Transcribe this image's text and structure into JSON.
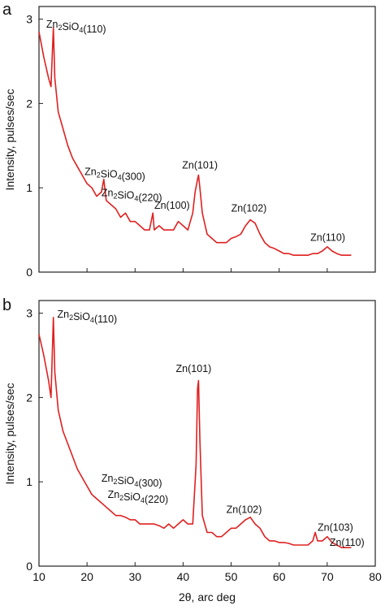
{
  "chart_data": [
    {
      "panel": "a",
      "type": "line",
      "ylabel": "Intensity, pulses/sec",
      "xlim": [
        10,
        80
      ],
      "ylim": [
        0,
        3.15
      ],
      "yticks": [
        0,
        1,
        2,
        3
      ],
      "xticks": [
        10,
        20,
        30,
        40,
        50,
        60,
        70,
        80
      ],
      "color": "#e02020",
      "series": [
        {
          "x": [
            10,
            11,
            12,
            12.5,
            13,
            13.3,
            14,
            15,
            16,
            17,
            18,
            19,
            20,
            21,
            22,
            23,
            23.5,
            24,
            25,
            26,
            27,
            28,
            29,
            30,
            31,
            32,
            33,
            33.7,
            34,
            35,
            36,
            37,
            38,
            39,
            40,
            41,
            42,
            42.5,
            43,
            43.2,
            43.5,
            44,
            45,
            46,
            47,
            48,
            49,
            50,
            51,
            52,
            53,
            54,
            55,
            56,
            57,
            58,
            59,
            60,
            61,
            62,
            63,
            64,
            65,
            66,
            67,
            68,
            69,
            70,
            71,
            72,
            73,
            74,
            75
          ],
          "y": [
            2.85,
            2.55,
            2.3,
            2.2,
            2.9,
            2.3,
            1.9,
            1.7,
            1.5,
            1.35,
            1.25,
            1.15,
            1.05,
            1.0,
            0.9,
            0.95,
            1.1,
            0.85,
            0.8,
            0.75,
            0.65,
            0.7,
            0.6,
            0.6,
            0.55,
            0.5,
            0.5,
            0.7,
            0.5,
            0.55,
            0.5,
            0.5,
            0.5,
            0.6,
            0.55,
            0.5,
            0.7,
            0.95,
            1.1,
            1.15,
            1.0,
            0.7,
            0.45,
            0.4,
            0.35,
            0.35,
            0.35,
            0.4,
            0.42,
            0.45,
            0.55,
            0.62,
            0.58,
            0.45,
            0.35,
            0.3,
            0.28,
            0.25,
            0.22,
            0.22,
            0.2,
            0.2,
            0.2,
            0.2,
            0.22,
            0.22,
            0.25,
            0.3,
            0.25,
            0.22,
            0.2,
            0.2,
            0.2
          ]
        }
      ],
      "annotations": [
        {
          "base": "Zn",
          "sub": "2",
          "mid": "SiO",
          "sub2": "4",
          "tail": "(110)",
          "x": 11.5,
          "y": 2.9
        },
        {
          "base": "Zn",
          "sub": "2",
          "mid": "SiO",
          "sub2": "4",
          "tail": "(300)",
          "x": 19.5,
          "y": 1.15
        },
        {
          "base": "Zn",
          "sub": "2",
          "mid": "SiO",
          "sub2": "4",
          "tail": "(220)",
          "x": 23.0,
          "y": 0.9
        },
        {
          "text": "Zn(100)",
          "x": 34.0,
          "y": 0.75
        },
        {
          "text": "Zn(101)",
          "x": 39.8,
          "y": 1.23
        },
        {
          "text": "Zn(102)",
          "x": 50.0,
          "y": 0.72
        },
        {
          "text": "Zn(110)",
          "x": 66.5,
          "y": 0.37
        }
      ]
    },
    {
      "panel": "b",
      "type": "line",
      "ylabel": "Intensity, pulses/sec",
      "xlabel": "2θ, arc deg",
      "xlim": [
        10,
        80
      ],
      "ylim": [
        0,
        3.15
      ],
      "yticks": [
        0,
        1,
        2,
        3
      ],
      "xticks": [
        10,
        20,
        30,
        40,
        50,
        60,
        70,
        80
      ],
      "color": "#e02020",
      "series": [
        {
          "x": [
            10,
            11,
            12,
            12.5,
            13,
            13.3,
            14,
            15,
            16,
            17,
            18,
            19,
            20,
            21,
            22,
            23,
            24,
            25,
            26,
            27,
            28,
            29,
            30,
            31,
            32,
            33,
            34,
            35,
            36,
            37,
            38,
            39,
            40,
            41,
            42,
            42.7,
            43,
            43.2,
            43.5,
            44,
            45,
            46,
            47,
            48,
            49,
            50,
            51,
            52,
            53,
            54,
            55,
            56,
            57,
            58,
            59,
            60,
            61,
            62,
            63,
            64,
            65,
            66,
            67,
            67.5,
            68,
            69,
            70,
            71,
            72,
            73,
            74,
            75
          ],
          "y": [
            2.75,
            2.5,
            2.2,
            2.0,
            2.95,
            2.3,
            1.85,
            1.6,
            1.45,
            1.3,
            1.15,
            1.05,
            0.95,
            0.85,
            0.8,
            0.75,
            0.7,
            0.65,
            0.6,
            0.6,
            0.58,
            0.55,
            0.55,
            0.5,
            0.5,
            0.5,
            0.5,
            0.48,
            0.45,
            0.5,
            0.45,
            0.5,
            0.55,
            0.5,
            0.5,
            1.2,
            2.1,
            2.2,
            1.5,
            0.6,
            0.4,
            0.4,
            0.35,
            0.35,
            0.4,
            0.45,
            0.45,
            0.5,
            0.55,
            0.58,
            0.5,
            0.45,
            0.35,
            0.3,
            0.3,
            0.28,
            0.28,
            0.27,
            0.25,
            0.25,
            0.25,
            0.25,
            0.3,
            0.4,
            0.3,
            0.3,
            0.35,
            0.28,
            0.25,
            0.22,
            0.22,
            0.22
          ]
        }
      ],
      "annotations": [
        {
          "base": "Zn",
          "sub": "2",
          "mid": "SiO",
          "sub2": "4",
          "tail": "(110)",
          "x": 13.8,
          "y": 2.95
        },
        {
          "text": "Zn(101)",
          "x": 38.5,
          "y": 2.3
        },
        {
          "base": "Zn",
          "sub": "2",
          "mid": "SiO",
          "sub2": "4",
          "tail": "(300)",
          "x": 23.0,
          "y": 1.0
        },
        {
          "base": "Zn",
          "sub": "2",
          "mid": "SiO",
          "sub2": "4",
          "tail": "(220)",
          "x": 24.3,
          "y": 0.81
        },
        {
          "text": "Zn(102)",
          "x": 49.0,
          "y": 0.63
        },
        {
          "text": "Zn(103)",
          "x": 68.0,
          "y": 0.42
        },
        {
          "text": "Zn(110)",
          "x": 70.5,
          "y": 0.24
        }
      ]
    }
  ]
}
